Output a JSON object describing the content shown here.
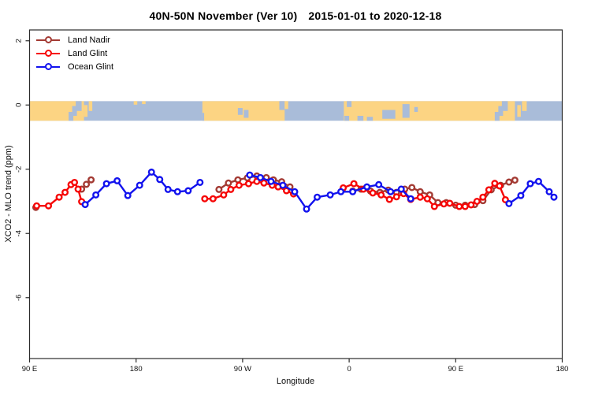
{
  "title": {
    "main": "40N-50N November (Ver 10)",
    "dates": "2015-01-01 to 2020-12-18"
  },
  "chart_data": {
    "type": "line",
    "title": "40N-50N November (Ver 10)   2015-01-01 to 2020-12-18",
    "xlabel": "Longitude",
    "ylabel": "XCO2 - MLO trend (ppm)",
    "legend_position": "top-left",
    "grid": false,
    "x_axis": {
      "description": "longitude axis starting at 90E, wrapping eastward over 450 degrees",
      "span_deg": 450,
      "ticks": [
        {
          "p": 0,
          "label": "90 E"
        },
        {
          "p": 90,
          "label": "180"
        },
        {
          "p": 180,
          "label": "90 W"
        },
        {
          "p": 270,
          "label": "0"
        },
        {
          "p": 360,
          "label": "90 E"
        },
        {
          "p": 450,
          "label": "180"
        }
      ]
    },
    "y_axis": {
      "min": -7.9,
      "max": 2.34,
      "ticks": [
        2,
        0,
        -2,
        -4,
        -6
      ]
    },
    "map_band": {
      "description": "40N-50N world coastline strip drawn along y=0",
      "v_top": 0.12,
      "v_bottom": -0.49,
      "land_color": "#fcd483",
      "ocean_color": "#a9bcd9",
      "land_blocks": [
        [
          0,
          46
        ],
        [
          146,
          215.5
        ],
        [
          265.5,
          410
        ]
      ],
      "features": [
        {
          "p0": 33,
          "p1": 37,
          "y0": 0.55,
          "y1": 1.0,
          "type": "water"
        },
        {
          "p0": 36,
          "p1": 40,
          "y0": 0.25,
          "y1": 0.75,
          "type": "water"
        },
        {
          "p0": 39,
          "p1": 44,
          "y0": 0.0,
          "y1": 0.5,
          "type": "water"
        },
        {
          "p0": 46,
          "p1": 49,
          "y0": 0.2,
          "y1": 0.8,
          "type": "land"
        },
        {
          "p0": 50,
          "p1": 53,
          "y0": 0.0,
          "y1": 0.5,
          "type": "land"
        },
        {
          "p0": 88,
          "p1": 91,
          "y0": 0.0,
          "y1": 0.18,
          "type": "land"
        },
        {
          "p0": 95,
          "p1": 98,
          "y0": 0.0,
          "y1": 0.15,
          "type": "land"
        },
        {
          "p0": 146,
          "p1": 147.5,
          "y0": 0.6,
          "y1": 1.0,
          "type": "water"
        },
        {
          "p0": 176,
          "p1": 180,
          "y0": 0.35,
          "y1": 0.7,
          "type": "water"
        },
        {
          "p0": 181,
          "p1": 185,
          "y0": 0.45,
          "y1": 0.85,
          "type": "water"
        },
        {
          "p0": 211,
          "p1": 215.5,
          "y0": 0.0,
          "y1": 0.45,
          "type": "water"
        },
        {
          "p0": 215.5,
          "p1": 218.5,
          "y0": 0.0,
          "y1": 0.4,
          "type": "land"
        },
        {
          "p0": 266,
          "p1": 270,
          "y0": 0.75,
          "y1": 1.0,
          "type": "water"
        },
        {
          "p0": 268,
          "p1": 272,
          "y0": 0.0,
          "y1": 0.3,
          "type": "water"
        },
        {
          "p0": 277,
          "p1": 282,
          "y0": 0.75,
          "y1": 1.0,
          "type": "water"
        },
        {
          "p0": 285,
          "p1": 290,
          "y0": 0.8,
          "y1": 1.0,
          "type": "water"
        },
        {
          "p0": 298,
          "p1": 309,
          "y0": 0.45,
          "y1": 0.9,
          "type": "water"
        },
        {
          "p0": 315,
          "p1": 321,
          "y0": 0.15,
          "y1": 0.85,
          "type": "water"
        },
        {
          "p0": 325,
          "p1": 328,
          "y0": 0.3,
          "y1": 0.55,
          "type": "water"
        },
        {
          "p0": 393,
          "p1": 397,
          "y0": 0.55,
          "y1": 1.0,
          "type": "water"
        },
        {
          "p0": 396,
          "p1": 400,
          "y0": 0.25,
          "y1": 0.75,
          "type": "water"
        },
        {
          "p0": 399,
          "p1": 404,
          "y0": 0.0,
          "y1": 0.5,
          "type": "water"
        },
        {
          "p0": 412,
          "p1": 415,
          "y0": 0.2,
          "y1": 0.8,
          "type": "land"
        },
        {
          "p0": 416,
          "p1": 420,
          "y0": 0.0,
          "y1": 0.5,
          "type": "land"
        }
      ]
    },
    "series": [
      {
        "name": "Land Nadir",
        "color": "#a33a33",
        "segments": [
          [
            [
              5.3,
              -3.19
            ]
          ],
          [
            [
              44,
              -2.62
            ],
            [
              48,
              -2.47
            ],
            [
              52,
              -2.33
            ]
          ],
          [
            [
              160,
              -2.63
            ],
            [
              168,
              -2.43
            ],
            [
              176,
              -2.33
            ],
            [
              184,
              -2.27
            ],
            [
              192,
              -2.21
            ],
            [
              200,
              -2.26
            ],
            [
              206,
              -2.33
            ],
            [
              213,
              -2.39
            ],
            [
              220,
              -2.55
            ]
          ],
          [
            [
              273,
              -2.68
            ],
            [
              280,
              -2.62
            ],
            [
              288,
              -2.68
            ],
            [
              296,
              -2.72
            ],
            [
              303,
              -2.65
            ],
            [
              310,
              -2.72
            ],
            [
              317,
              -2.62
            ],
            [
              323,
              -2.57
            ],
            [
              330,
              -2.7
            ],
            [
              338,
              -2.8
            ],
            [
              345,
              -3.04
            ],
            [
              352,
              -3.04
            ],
            [
              360,
              -3.12
            ],
            [
              368,
              -3.12
            ],
            [
              376,
              -3.1
            ],
            [
              383,
              -2.98
            ],
            [
              390,
              -2.64
            ],
            [
              398,
              -2.5
            ],
            [
              405,
              -2.4
            ],
            [
              410,
              -2.34
            ]
          ]
        ]
      },
      {
        "name": "Land Glint",
        "color": "#f60606",
        "segments": [
          [
            [
              6,
              -3.14
            ],
            [
              16,
              -3.14
            ],
            [
              25,
              -2.87
            ],
            [
              30,
              -2.72
            ],
            [
              35,
              -2.48
            ],
            [
              38,
              -2.41
            ],
            [
              41,
              -2.62
            ],
            [
              44,
              -3.01
            ]
          ],
          [
            [
              148,
              -2.92
            ],
            [
              155,
              -2.92
            ],
            [
              164,
              -2.8
            ],
            [
              170,
              -2.63
            ],
            [
              177,
              -2.5
            ],
            [
              185,
              -2.45
            ],
            [
              192,
              -2.38
            ],
            [
              198,
              -2.43
            ],
            [
              205,
              -2.5
            ],
            [
              210,
              -2.55
            ],
            [
              217,
              -2.67
            ],
            [
              223,
              -2.77
            ]
          ],
          [
            [
              265,
              -2.58
            ],
            [
              274,
              -2.45
            ],
            [
              282,
              -2.62
            ],
            [
              290,
              -2.74
            ],
            [
              297,
              -2.8
            ],
            [
              304,
              -2.94
            ],
            [
              310,
              -2.86
            ],
            [
              316,
              -2.76
            ],
            [
              322,
              -2.94
            ],
            [
              330,
              -2.87
            ],
            [
              336,
              -2.92
            ],
            [
              342,
              -3.16
            ],
            [
              350,
              -3.08
            ],
            [
              355,
              -3.06
            ],
            [
              363,
              -3.16
            ],
            [
              368,
              -3.16
            ],
            [
              373,
              -3.11
            ],
            [
              378,
              -3.0
            ],
            [
              383,
              -2.87
            ],
            [
              388,
              -2.64
            ],
            [
              393,
              -2.44
            ],
            [
              397,
              -2.52
            ],
            [
              402,
              -2.95
            ]
          ]
        ]
      },
      {
        "name": "Ocean Glint",
        "color": "#1212ee",
        "segments": [
          [
            [
              47,
              -3.1
            ],
            [
              56,
              -2.8
            ],
            [
              65,
              -2.45
            ],
            [
              74,
              -2.36
            ],
            [
              83,
              -2.82
            ],
            [
              93,
              -2.5
            ],
            [
              103,
              -2.09
            ],
            [
              110,
              -2.32
            ],
            [
              117,
              -2.63
            ],
            [
              125,
              -2.7
            ],
            [
              134,
              -2.67
            ],
            [
              144,
              -2.41
            ]
          ],
          [
            [
              186,
              -2.18
            ],
            [
              195,
              -2.26
            ],
            [
              204,
              -2.38
            ],
            [
              214,
              -2.5
            ],
            [
              224,
              -2.7
            ],
            [
              234,
              -3.24
            ],
            [
              243,
              -2.87
            ],
            [
              254,
              -2.8
            ],
            [
              263,
              -2.7
            ],
            [
              273,
              -2.7
            ],
            [
              285,
              -2.55
            ],
            [
              295,
              -2.48
            ],
            [
              305,
              -2.7
            ],
            [
              314,
              -2.62
            ],
            [
              322,
              -2.92
            ]
          ],
          [
            [
              405,
              -3.07
            ],
            [
              415,
              -2.82
            ],
            [
              423,
              -2.45
            ],
            [
              430,
              -2.38
            ],
            [
              439,
              -2.7
            ],
            [
              443,
              -2.87
            ]
          ]
        ]
      }
    ]
  }
}
